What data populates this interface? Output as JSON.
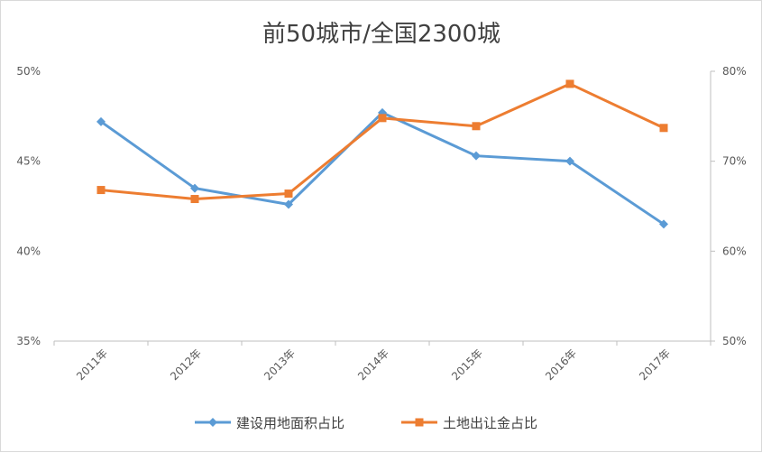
{
  "chart_data": {
    "type": "line",
    "title": "前50城市/全国2300城",
    "categories": [
      "2011年",
      "2012年",
      "2013年",
      "2014年",
      "2015年",
      "2016年",
      "2017年"
    ],
    "axes": {
      "left": {
        "ticks": [
          "50%",
          "45%",
          "40%",
          "35%"
        ],
        "range": [
          35,
          50
        ]
      },
      "right": {
        "ticks": [
          "80%",
          "70%",
          "60%",
          "50%"
        ],
        "range": [
          50,
          80
        ]
      }
    },
    "series": [
      {
        "name": "建设用地面积占比",
        "axis": "left",
        "color": "#5b9bd5",
        "marker": "diamond",
        "values": [
          47.2,
          43.5,
          42.6,
          47.7,
          45.3,
          45.0,
          41.5
        ]
      },
      {
        "name": "土地出让金占比",
        "axis": "right",
        "color": "#ed7d31",
        "marker": "square",
        "values": [
          66.8,
          65.8,
          66.4,
          74.8,
          73.9,
          78.6,
          73.7
        ]
      }
    ],
    "grid": false,
    "legend": "bottom"
  }
}
